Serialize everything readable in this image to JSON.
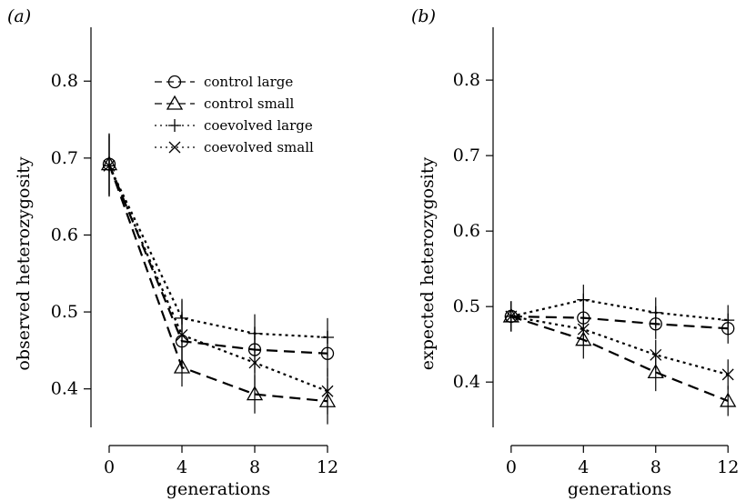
{
  "chart_data": [
    {
      "type": "line",
      "panel_label": "(a)",
      "xlabel": "generations",
      "ylabel": "observed heterozygosity",
      "x": [
        0,
        4,
        8,
        12
      ],
      "xticks": [
        "0",
        "4",
        "8",
        "12"
      ],
      "yticks": [
        "0.4",
        "0.5",
        "0.6",
        "0.7",
        "0.8"
      ],
      "xlim": [
        -1,
        13.5
      ],
      "ylim": [
        0.35,
        0.87
      ],
      "grid": false,
      "legend_position": "top-center",
      "series": [
        {
          "name": "control large",
          "style": "long-dash",
          "marker": "circle",
          "values": [
            0.692,
            0.462,
            0.451,
            0.446
          ],
          "err": [
            0.04,
            0.035,
            0.03,
            0.03
          ]
        },
        {
          "name": "control small",
          "style": "long-dash",
          "marker": "triangle",
          "values": [
            0.692,
            0.428,
            0.393,
            0.384
          ],
          "err": [
            0.04,
            0.025,
            0.025,
            0.03
          ]
        },
        {
          "name": "coevolved large",
          "style": "dotted",
          "marker": "plus",
          "values": [
            0.69,
            0.492,
            0.472,
            0.467
          ],
          "err": [
            0.04,
            0.025,
            0.025,
            0.025
          ]
        },
        {
          "name": "coevolved small",
          "style": "dotted",
          "marker": "cross",
          "values": [
            0.69,
            0.47,
            0.434,
            0.397
          ],
          "err": [
            0.04,
            0.045,
            0.035,
            0.03
          ]
        }
      ]
    },
    {
      "type": "line",
      "panel_label": "(b)",
      "xlabel": "generations",
      "ylabel": "expected heterozygosity",
      "x": [
        0,
        4,
        8,
        12
      ],
      "xticks": [
        "0",
        "4",
        "8",
        "12"
      ],
      "yticks": [
        "0.4",
        "0.5",
        "0.6",
        "0.7",
        "0.8"
      ],
      "xlim": [
        -1,
        13.5
      ],
      "ylim": [
        0.34,
        0.87
      ],
      "grid": false,
      "series": [
        {
          "name": "control large",
          "style": "long-dash",
          "marker": "circle",
          "values": [
            0.487,
            0.485,
            0.477,
            0.471
          ],
          "err": [
            0.02,
            0.02,
            0.02,
            0.02
          ]
        },
        {
          "name": "control small",
          "style": "long-dash",
          "marker": "triangle",
          "values": [
            0.487,
            0.456,
            0.413,
            0.375
          ],
          "err": [
            0.02,
            0.025,
            0.025,
            0.02
          ]
        },
        {
          "name": "coevolved large",
          "style": "dotted",
          "marker": "plus",
          "values": [
            0.487,
            0.509,
            0.492,
            0.482
          ],
          "err": [
            0.02,
            0.02,
            0.02,
            0.02
          ]
        },
        {
          "name": "coevolved small",
          "style": "dotted",
          "marker": "cross",
          "values": [
            0.487,
            0.47,
            0.436,
            0.41
          ],
          "err": [
            0.02,
            0.02,
            0.02,
            0.02
          ]
        }
      ]
    }
  ]
}
